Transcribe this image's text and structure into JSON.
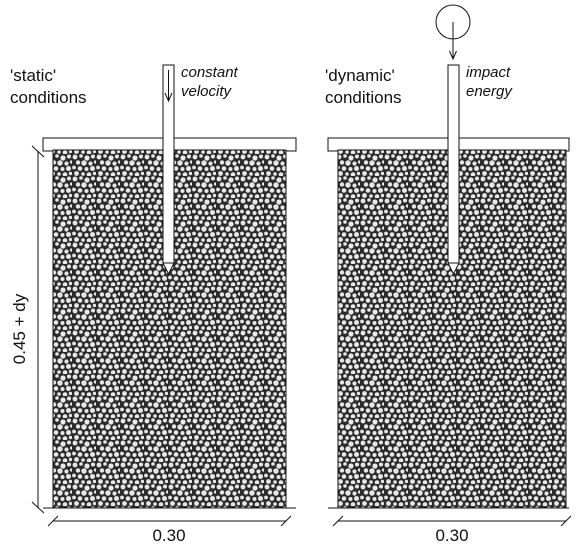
{
  "left_panel": {
    "condition_line1": "'static'",
    "condition_line2": "conditions",
    "load_line1": "constant",
    "load_line2": "velocity",
    "width_label": "0.30"
  },
  "right_panel": {
    "condition_line1": "'dynamic'",
    "condition_line2": "conditions",
    "load_line1": "impact",
    "load_line2": "energy",
    "width_label": "0.30"
  },
  "height_label": "0.45 + dy",
  "colors": {
    "ink": "#111111",
    "granular_fill": "#2b2b2b",
    "particle": "#e8e8e8",
    "background": "#ffffff"
  },
  "icons": {
    "falling_weight": "circle-weight",
    "downward_arrow": "arrow-down"
  }
}
